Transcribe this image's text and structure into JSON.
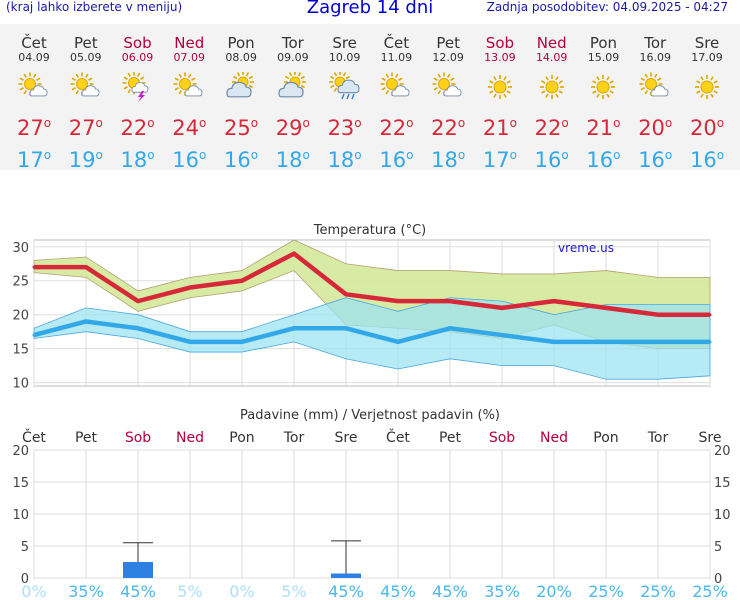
{
  "header": {
    "left_note": "(kraj lahko izberete v meniju)",
    "title": "Zagreb 14 dni",
    "updated": "Zadnja posodobitev: 04.09.2025 - 04:27"
  },
  "days": [
    {
      "day": "Čet",
      "date": "04.09",
      "weekend": false,
      "icon": "sun-cloud-icon",
      "tmax": "27",
      "tmin": "17"
    },
    {
      "day": "Pet",
      "date": "05.09",
      "weekend": false,
      "icon": "sun-cloud-icon",
      "tmax": "27",
      "tmin": "19"
    },
    {
      "day": "Sob",
      "date": "06.09",
      "weekend": true,
      "icon": "sun-storm-icon",
      "tmax": "22",
      "tmin": "18"
    },
    {
      "day": "Ned",
      "date": "07.09",
      "weekend": true,
      "icon": "sun-cloud-icon",
      "tmax": "24",
      "tmin": "16"
    },
    {
      "day": "Pon",
      "date": "08.09",
      "weekend": false,
      "icon": "cloudy-sun-icon",
      "tmax": "25",
      "tmin": "16"
    },
    {
      "day": "Tor",
      "date": "09.09",
      "weekend": false,
      "icon": "cloudy-sun-icon",
      "tmax": "29",
      "tmin": "18"
    },
    {
      "day": "Sre",
      "date": "10.09",
      "weekend": false,
      "icon": "sun-rain-icon",
      "tmax": "23",
      "tmin": "18"
    },
    {
      "day": "Čet",
      "date": "11.09",
      "weekend": false,
      "icon": "sun-cloud-icon",
      "tmax": "22",
      "tmin": "16"
    },
    {
      "day": "Pet",
      "date": "12.09",
      "weekend": false,
      "icon": "sun-cloud-icon",
      "tmax": "22",
      "tmin": "18"
    },
    {
      "day": "Sob",
      "date": "13.09",
      "weekend": true,
      "icon": "sun-icon",
      "tmax": "21",
      "tmin": "17"
    },
    {
      "day": "Ned",
      "date": "14.09",
      "weekend": true,
      "icon": "sun-icon",
      "tmax": "22",
      "tmin": "16"
    },
    {
      "day": "Pon",
      "date": "15.09",
      "weekend": false,
      "icon": "sun-icon",
      "tmax": "21",
      "tmin": "16"
    },
    {
      "day": "Tor",
      "date": "16.09",
      "weekend": false,
      "icon": "sun-cloud-icon",
      "tmax": "20",
      "tmin": "16"
    },
    {
      "day": "Sre",
      "date": "17.09",
      "weekend": false,
      "icon": "sun-icon",
      "tmax": "20",
      "tmin": "16"
    }
  ],
  "colors": {
    "tmax": "#d62839",
    "tmin": "#33a8e8",
    "weekend": "#b3003b",
    "max_band": "#d4e99b",
    "min_band": "#9ee3f0",
    "overlap": "#86d98a",
    "precip_bar": "#2f80e0",
    "prob_text": "#4cb8ec"
  },
  "chart_data": [
    {
      "type": "line",
      "title": "Temperatura (°C)",
      "watermark": "vreme.us",
      "ylim": [
        9.5,
        31
      ],
      "yticks": [
        10,
        15,
        20,
        25,
        30
      ],
      "grid": true,
      "series": [
        {
          "name": "tmax",
          "values": [
            27,
            27,
            22,
            24,
            25,
            29,
            23,
            22,
            22,
            21,
            22,
            21,
            20,
            20
          ]
        },
        {
          "name": "tmin",
          "values": [
            17,
            19,
            18,
            16,
            16,
            18,
            18,
            16,
            18,
            17,
            16,
            16,
            16,
            16
          ]
        }
      ],
      "bands": [
        {
          "name": "max_range",
          "upper": [
            28,
            28.5,
            23.5,
            25.5,
            26.5,
            31,
            27.5,
            26.5,
            26.5,
            26,
            26,
            26.5,
            25.5,
            25.5
          ],
          "lower": [
            26.2,
            25.5,
            20.5,
            22.5,
            23.5,
            26.5,
            18.5,
            18,
            17.5,
            16.5,
            18.5,
            16,
            15,
            15
          ]
        },
        {
          "name": "min_range",
          "upper": [
            18,
            21,
            20,
            17.5,
            17.5,
            20,
            22.5,
            20.5,
            22.5,
            22,
            20,
            21.5,
            21.5,
            21.5
          ],
          "lower": [
            16.5,
            17.5,
            16.5,
            14.5,
            14.5,
            16,
            13.5,
            12,
            13.5,
            12.5,
            12.5,
            10.5,
            10.5,
            11
          ]
        }
      ]
    },
    {
      "type": "bar",
      "title": "Padavine (mm) / Verjetnost padavin (%)",
      "ylim": [
        0,
        20
      ],
      "yticks": [
        0,
        5,
        10,
        15,
        20
      ],
      "grid": true,
      "precip_mm": [
        0,
        0,
        2.5,
        0,
        0,
        0,
        0.7,
        0,
        0,
        0,
        0,
        0,
        0,
        0
      ],
      "precip_max_mm": [
        0,
        0,
        5.5,
        0,
        0,
        0,
        5.8,
        0,
        0,
        0,
        0,
        0,
        0,
        0
      ],
      "probability": [
        "0%",
        "35%",
        "45%",
        "5%",
        "0%",
        "5%",
        "45%",
        "45%",
        "45%",
        "35%",
        "20%",
        "25%",
        "25%",
        "25%"
      ]
    }
  ]
}
